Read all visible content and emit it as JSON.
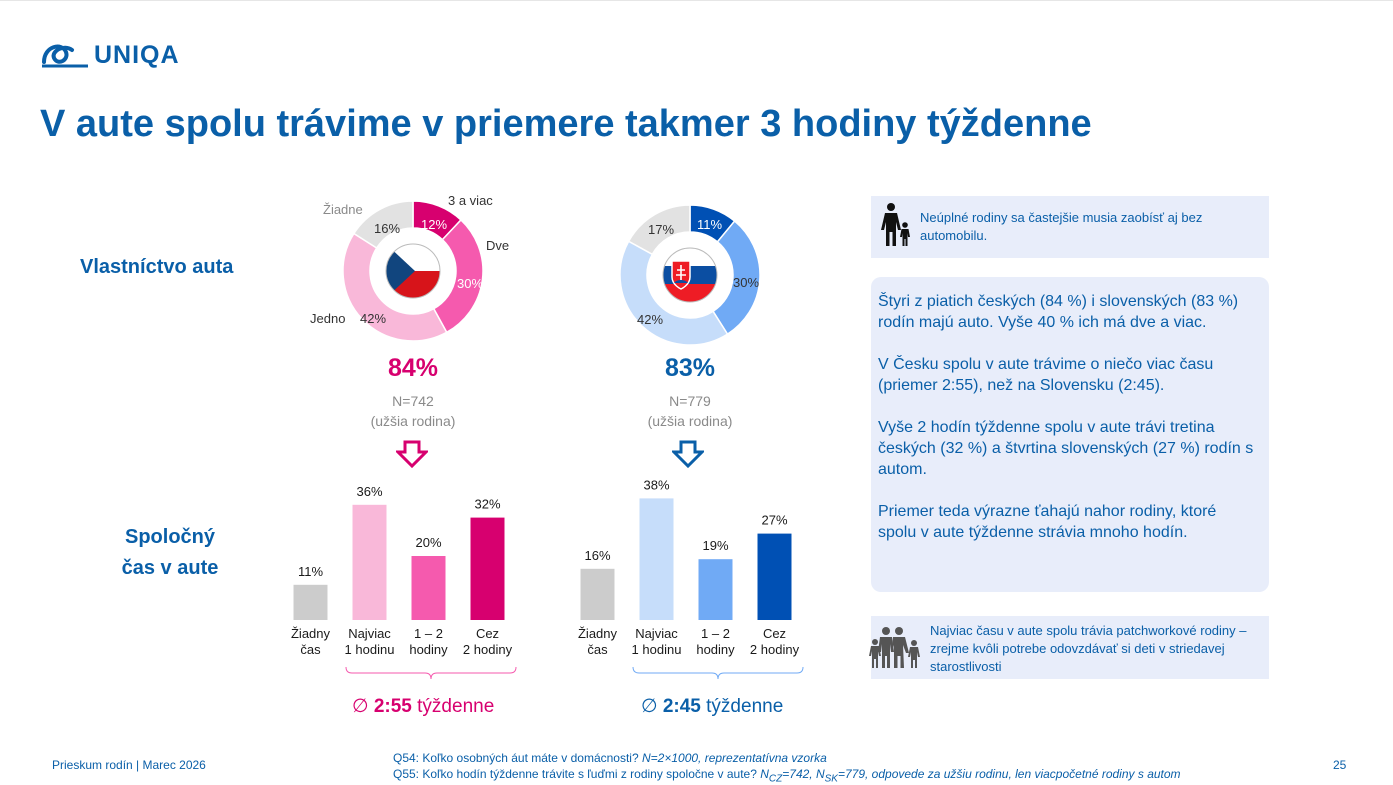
{
  "brand": {
    "logo_text": "UNIQA"
  },
  "title": "V aute spolu trávime v priemere takmer 3 hodiny týždenne",
  "rows": {
    "ownership": "Vlastníctvo auta",
    "time_line1": "Spoločný",
    "time_line2": "čas v aute"
  },
  "colors": {
    "brand_blue": "#0a5fa8",
    "magenta": "#d7006f",
    "cz_palette": [
      "#d7006f",
      "#f55aae",
      "#f9b8d9",
      "#e2e2e2"
    ],
    "sk_palette": [
      "#0050b4",
      "#70aaf5",
      "#c6ddfa",
      "#e2e2e2"
    ],
    "gray_bar": "#cccccc",
    "box_bg": "#e8edfa"
  },
  "cz": {
    "flag": "cz-flag-icon",
    "total_pct": "84%",
    "n": "N=742",
    "group": "(užšia rodina)",
    "avg_symbol": "∅",
    "avg_value": "2:55",
    "avg_unit": "týždenne"
  },
  "sk": {
    "flag": "sk-flag-icon",
    "total_pct": "83%",
    "n": "N=779",
    "group": "(užšia rodina)",
    "avg_symbol": "∅",
    "avg_value": "2:45",
    "avg_unit": "týždenne"
  },
  "chart_data": [
    {
      "type": "pie",
      "subtype": "donut",
      "id": "ownership-cz",
      "labels": [
        "3 a viac",
        "Dve",
        "Jedno",
        "Žiadne"
      ],
      "values": [
        12,
        30,
        42,
        16
      ],
      "value_labels": [
        "12%",
        "30%",
        "42%",
        "16%"
      ]
    },
    {
      "type": "pie",
      "subtype": "donut",
      "id": "ownership-sk",
      "labels": [
        "",
        "",
        "",
        ""
      ],
      "values": [
        11,
        30,
        42,
        17
      ],
      "value_labels": [
        "11%",
        "30%",
        "42%",
        "17%"
      ]
    },
    {
      "type": "bar",
      "id": "time-cz",
      "categories": [
        [
          "Žiadny",
          "čas"
        ],
        [
          "Najviac",
          "1 hodinu"
        ],
        [
          "1 – 2",
          "hodiny"
        ],
        [
          "Cez",
          "2 hodiny"
        ]
      ],
      "values": [
        11,
        36,
        20,
        32
      ],
      "value_labels": [
        "11%",
        "36%",
        "20%",
        "32%"
      ],
      "ylim": [
        0,
        40
      ]
    },
    {
      "type": "bar",
      "id": "time-sk",
      "categories": [
        [
          "Žiadny",
          "čas"
        ],
        [
          "Najviac",
          "1 hodinu"
        ],
        [
          "1 – 2",
          "hodiny"
        ],
        [
          "Cez",
          "2 hodiny"
        ]
      ],
      "values": [
        16,
        38,
        19,
        27
      ],
      "value_labels": [
        "16%",
        "38%",
        "19%",
        "27%"
      ],
      "ylim": [
        0,
        40
      ]
    }
  ],
  "sidebar": {
    "box1": "Neúplné rodiny sa častejšie musia zaobísť aj bez automobilu.",
    "box2": [
      "Štyri z piatich českých (84 %) i slovenských (83 %) rodín majú auto. Vyše 40 % ich má dve a viac.",
      "V Česku spolu v aute trávime o niečo viac času (priemer 2:55), než na Slovensku (2:45).",
      "Vyše 2 hodín týždenne spolu v aute trávi tretina českých (32 %) a štvrtina slovenských (27 %) rodín s autom.",
      "Priemer teda výrazne ťahajú nahor rodiny, ktoré spolu v aute týždenne strávia mnoho hodín."
    ],
    "box3": "Najviac času v aute spolu trávia patchworkové rodiny – zrejme kvôli potrebe odovzdávať si deti v striedavej starostlivosti"
  },
  "footer": {
    "left": "Prieskum rodín | Marec 2026",
    "q54_text": "Q54: Koľko osobných áut máte v domácnosti? ",
    "q54_italic": "N=2×1000, reprezentatívna vzorka",
    "q55_text": "Q55: Koľko hodín týždenne trávite s ľuďmi z rodiny spoločne v aute? ",
    "q55_nc": "N",
    "q55_nc_sub": "CZ",
    "q55_nc_val": "=742, ",
    "q55_ns": "N",
    "q55_ns_sub": "SK",
    "q55_rest": "=779, odpovede za užšiu rodinu, len viacpočetné rodiny s autom",
    "page": "25"
  }
}
